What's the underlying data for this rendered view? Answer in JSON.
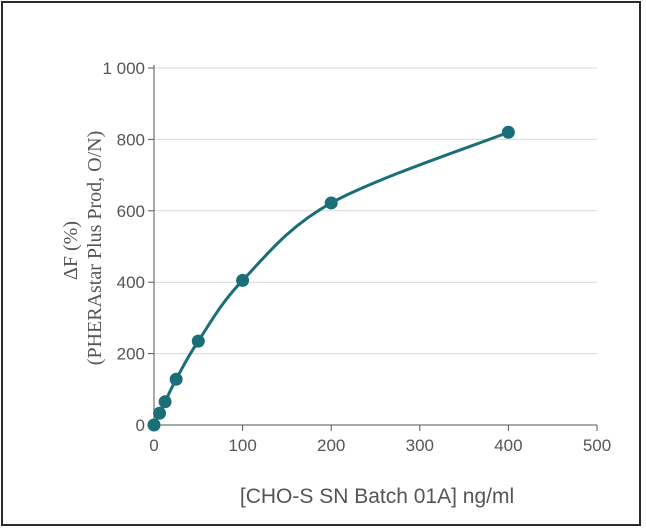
{
  "chart_data": {
    "type": "scatter",
    "title": "",
    "xlabel": "[CHO-S SN Batch 01A] ng/ml",
    "ylabel_line1": "ΔF (%)",
    "ylabel_line2": "(PHERAstar Plus Prod, O/N)",
    "xlim": [
      0,
      500
    ],
    "ylim": [
      0,
      1000
    ],
    "x_ticks": [
      0,
      100,
      200,
      300,
      400,
      500
    ],
    "y_ticks": [
      0,
      200,
      400,
      600,
      800,
      1000
    ],
    "x_tick_labels": [
      "0",
      "100",
      "200",
      "300",
      "400",
      "500"
    ],
    "y_tick_labels": [
      "0",
      "200",
      "400",
      "600",
      "800",
      "1 000"
    ],
    "grid": "horizontal",
    "series": [
      {
        "color": "#1a6e78",
        "x": [
          0,
          6.25,
          12.5,
          25,
          50,
          100,
          200,
          400
        ],
        "y": [
          0,
          33,
          65,
          128,
          235,
          405,
          622,
          820
        ],
        "fit_curve": true
      }
    ]
  }
}
